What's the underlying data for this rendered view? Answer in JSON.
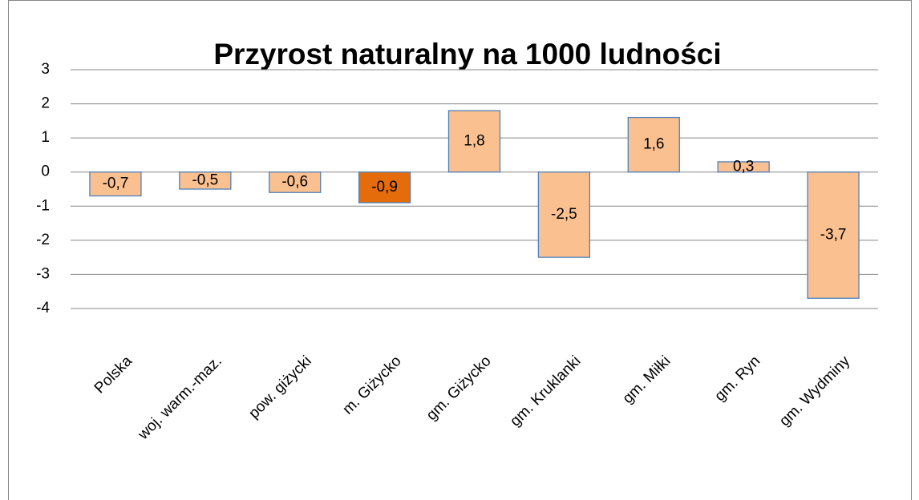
{
  "chart_data": {
    "type": "bar",
    "title": "Przyrost naturalny na 1000 ludności",
    "categories": [
      "Polska",
      "woj. warm.-maz.",
      "pow. giżycki",
      "m. Giżycko",
      "gm. Giżycko",
      "gm. Kruklanki",
      "gm. Miłki",
      "gm. Ryn",
      "gm. Wydminy"
    ],
    "values": [
      -0.7,
      -0.5,
      -0.6,
      -0.9,
      1.8,
      -2.5,
      1.6,
      0.3,
      -3.7
    ],
    "value_labels": [
      "-0,7",
      "-0,5",
      "-0,6",
      "-0,9",
      "1,8",
      "-2,5",
      "1,6",
      "0,3",
      "-3,7"
    ],
    "colors": [
      "#fac090",
      "#fac090",
      "#fac090",
      "#e46c0a",
      "#fac090",
      "#fac090",
      "#fac090",
      "#fac090",
      "#fac090"
    ],
    "ylim": [
      -4,
      3
    ],
    "yticks": [
      3,
      2,
      1,
      0,
      -1,
      -2,
      -3,
      -4
    ],
    "grid": true
  }
}
